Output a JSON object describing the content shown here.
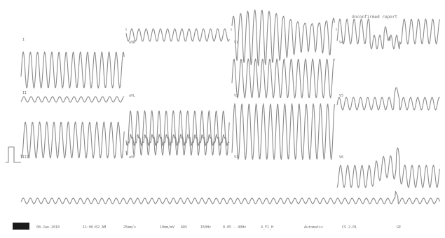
{
  "leads": [
    {
      "id": "I",
      "label": "I"
    },
    {
      "id": "aVR",
      "label": "aVR"
    },
    {
      "id": "V1",
      "label": "V1"
    },
    {
      "id": "V4",
      "label": "V4"
    },
    {
      "id": "II",
      "label": "II"
    },
    {
      "id": "aVL",
      "label": "aVL"
    },
    {
      "id": "V2",
      "label": "V2"
    },
    {
      "id": "V5",
      "label": "V5"
    },
    {
      "id": "III",
      "label": "III"
    },
    {
      "id": "aVF",
      "label": "aVF"
    },
    {
      "id": "V3",
      "label": "V3"
    },
    {
      "id": "V6",
      "label": "V6"
    }
  ],
  "annotation": "Unconfirmed report",
  "footer": {
    "date": "08-Jan-2010",
    "time": "11:06:02 AM",
    "paper_speed": "25mm/s",
    "gain": "10mm/mV",
    "sample": "ADS",
    "filter": "150Hz",
    "band": "0.05 - 40Hz",
    "device": "4_F1_H",
    "mode": "Automatic",
    "version": "CS 2.01",
    "brand": "GE"
  },
  "colors": {
    "trace": "#8a8a8a",
    "text": "#6f6f6f",
    "block": "#1a1a1a"
  }
}
